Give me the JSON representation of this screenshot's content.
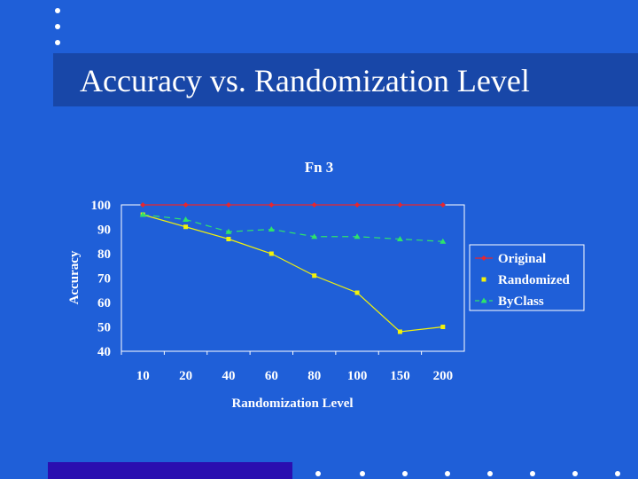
{
  "slide": {
    "title": "Accuracy vs. Randomization Level",
    "accent_color": "#1f5fd8",
    "band_color": "#1847a8",
    "bar_color": "#2a0fb0"
  },
  "chart_data": {
    "type": "line",
    "title": "Fn 3",
    "xlabel": "Randomization Level",
    "ylabel": "Accuracy",
    "categories": [
      "10",
      "20",
      "40",
      "60",
      "80",
      "100",
      "150",
      "200"
    ],
    "ylim": [
      40,
      100
    ],
    "yticks": [
      100,
      90,
      80,
      70,
      60,
      50,
      40
    ],
    "grid": false,
    "legend_position": "right",
    "series": [
      {
        "name": "Original",
        "values": [
          100,
          100,
          100,
          100,
          100,
          100,
          100,
          100
        ],
        "color": "#e8262e",
        "marker": "diamond",
        "line": "solid"
      },
      {
        "name": "Randomized",
        "values": [
          96,
          91,
          86,
          80,
          71,
          64,
          48,
          50
        ],
        "color": "#f2f20a",
        "marker": "square",
        "line": "solid"
      },
      {
        "name": "ByClass",
        "values": [
          96,
          94,
          89,
          90,
          87,
          87,
          86,
          85
        ],
        "color": "#2ee36b",
        "marker": "triangle",
        "line": "dashed"
      }
    ]
  }
}
